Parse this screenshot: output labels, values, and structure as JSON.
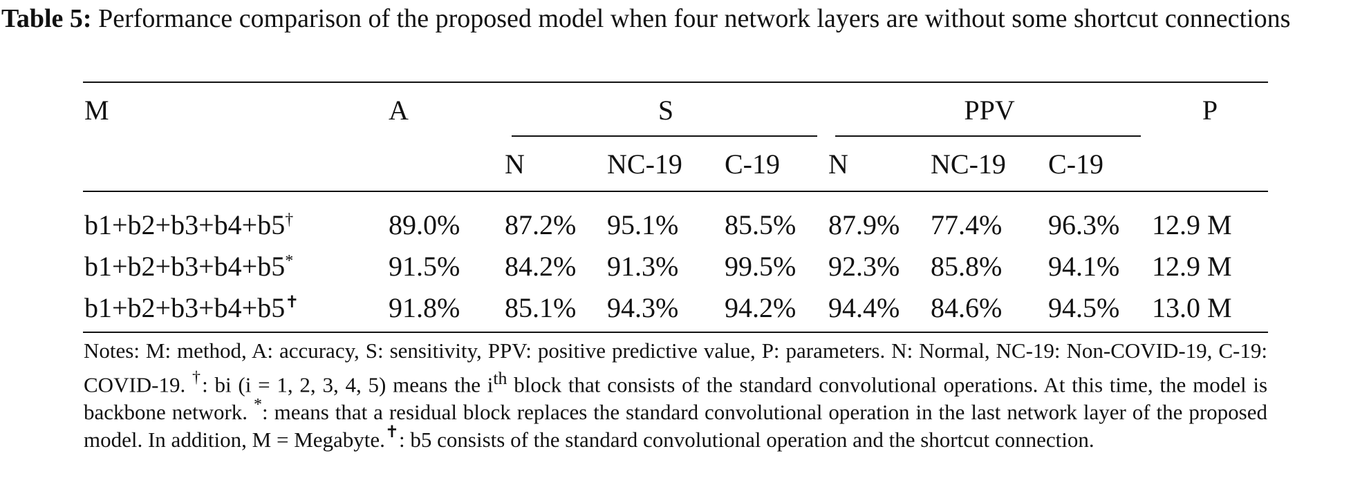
{
  "caption": {
    "label": "Table 5:",
    "text": "Performance comparison of the proposed model when four network layers are without some shortcut connections"
  },
  "table": {
    "header_top": [
      "M",
      "A",
      "S",
      "PPV",
      "P"
    ],
    "header_sub": [
      "N",
      "NC-19",
      "C-19",
      "N",
      "NC-19",
      "C-19"
    ],
    "rows": [
      {
        "method": "b1+b2+b3+b4+b5",
        "mark": "†",
        "accuracy": "89.0%",
        "s_n": "87.2%",
        "s_nc19": "95.1%",
        "s_c19": "85.5%",
        "ppv_n": "87.9%",
        "ppv_nc19": "77.4%",
        "ppv_c19": "96.3%",
        "params": "12.9 M"
      },
      {
        "method": "b1+b2+b3+b4+b5",
        "mark": "*",
        "accuracy": "91.5%",
        "s_n": "84.2%",
        "s_nc19": "91.3%",
        "s_c19": "99.5%",
        "ppv_n": "92.3%",
        "ppv_nc19": "85.8%",
        "ppv_c19": "94.1%",
        "params": "12.9 M"
      },
      {
        "method": "b1+b2+b3+b4+b5",
        "mark": "✝",
        "accuracy": "91.8%",
        "s_n": "85.1%",
        "s_nc19": "94.3%",
        "s_c19": "94.2%",
        "ppv_n": "94.4%",
        "ppv_nc19": "84.6%",
        "ppv_c19": "94.5%",
        "params": "13.0 M"
      }
    ]
  },
  "notes": {
    "p1": "Notes: M: method, A: accuracy, S: sensitivity, PPV: positive predictive value, P: parameters. N: Normal, NC-19: Non-COVID-19, C-19: COVID-19.",
    "mark1": "†",
    "p2": ": bi (i = 1, 2, 3, 4, 5) means the i",
    "sup_th": "th",
    "p3": "block that consists of the standard convolutional operations. At this time, the model is backbone network.",
    "mark2": "*",
    "p4": ": means that a residual block replaces the standard convolutional operation in the last network layer of the proposed model. In addition, M = Megabyte.",
    "mark3": "✝",
    "p5": ": b5 consists of the standard convolutional operation and the shortcut connection."
  }
}
